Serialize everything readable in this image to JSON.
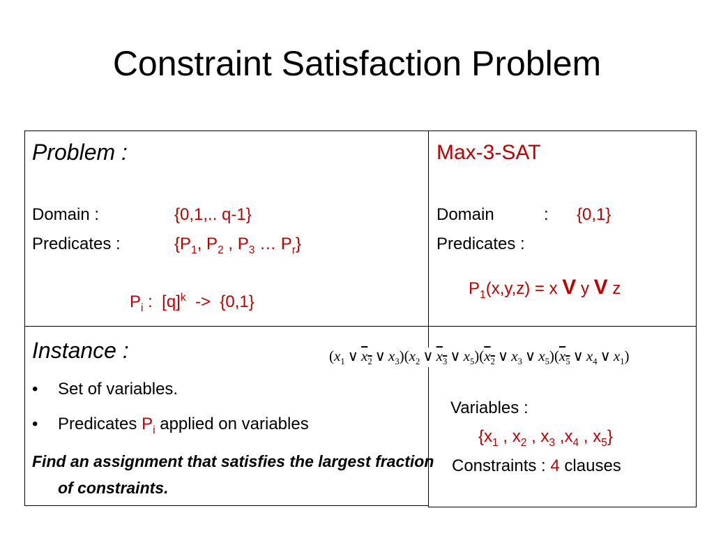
{
  "title": "Constraint Satisfaction Problem",
  "left": {
    "problem": {
      "heading": "Problem :",
      "domain_label": "Domain :",
      "domain_value": "{0,1,.. q-1}",
      "predicates_label": "Predicates :",
      "predicates_value": [
        "{P",
        "1",
        ", P",
        "2",
        " , P",
        "3",
        " … P",
        "r",
        "}"
      ],
      "predicate_def": [
        "P",
        "i",
        " :  [q]",
        "k",
        "  ->  {0,1}"
      ]
    },
    "instance": {
      "heading": "Instance :",
      "bullets": [
        [
          "Set of variables."
        ],
        [
          "Predicates ",
          "P",
          "i",
          " applied on variables"
        ]
      ],
      "goal": "Find an assignment that satisfies the largest fraction of constraints."
    }
  },
  "right": {
    "problem": {
      "heading": "Max-3-SAT",
      "domain_label": "Domain",
      "domain_sep": ":",
      "domain_value": "{0,1}",
      "predicates_label": "Predicates :",
      "predicate_def": [
        "P",
        "1",
        "(x,y,z) = x ",
        "V",
        " y ",
        "V",
        " z"
      ]
    },
    "instance": {
      "formula": {
        "operator": "∨",
        "open": "(",
        "close": ")",
        "clauses": [
          [
            {
              "var": "x",
              "index": "1",
              "negated": false
            },
            {
              "var": "x",
              "index": "2",
              "negated": true
            },
            {
              "var": "x",
              "index": "3",
              "negated": false
            }
          ],
          [
            {
              "var": "x",
              "index": "2",
              "negated": false
            },
            {
              "var": "x",
              "index": "3",
              "negated": true
            },
            {
              "var": "x",
              "index": "5",
              "negated": false
            }
          ],
          [
            {
              "var": "x",
              "index": "2",
              "negated": true
            },
            {
              "var": "x",
              "index": "3",
              "negated": false
            },
            {
              "var": "x",
              "index": "5",
              "negated": false
            }
          ],
          [
            {
              "var": "x",
              "index": "5",
              "negated": true
            },
            {
              "var": "x",
              "index": "4",
              "negated": false
            },
            {
              "var": "x",
              "index": "1",
              "negated": false
            }
          ]
        ]
      },
      "variables_label": "Variables :",
      "variables_value": [
        "{x",
        "1",
        " , x",
        "2",
        " , x",
        "3",
        " ,x",
        "4",
        " , x",
        "5",
        "}"
      ],
      "constraints_label": "Constraints : ",
      "constraints_count": 4,
      "constraints_unit": " clauses"
    }
  }
}
